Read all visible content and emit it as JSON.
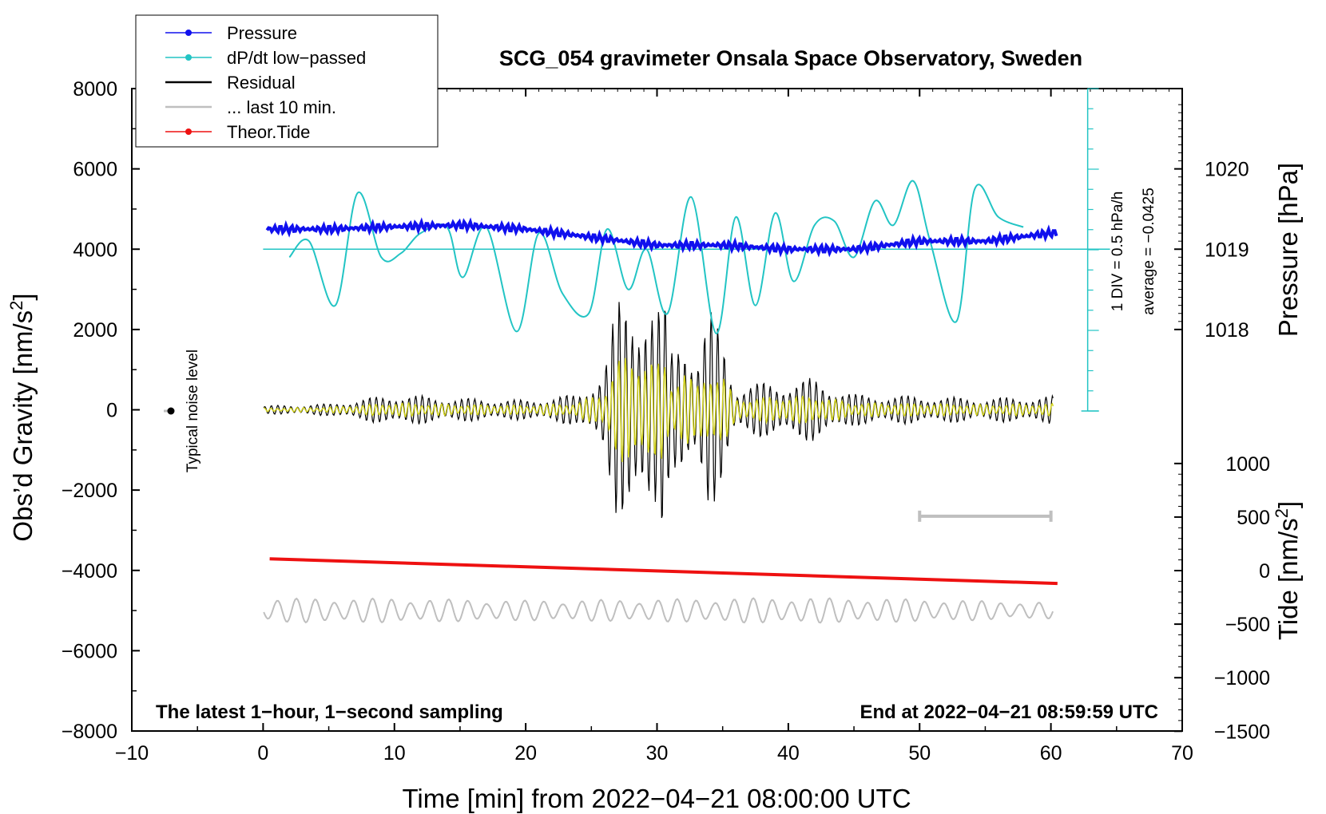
{
  "chart_data": {
    "type": "line",
    "title": "SCG_054 gravimeter Onsala Space Observatory, Sweden",
    "xlabel": "Time [min] from 2022−04−21 08:00:00 UTC",
    "ylabel_pre": "Obs’d Gravity [nm/s",
    "ylabel_sup": "2",
    "ylabel_post": "]",
    "right_pressure_label": "Pressure [hPa]",
    "right_tide_label_pre": "Tide [nm/s",
    "right_tide_label_sup": "2",
    "right_tide_label_post": "]",
    "xlim": [
      -10,
      70
    ],
    "ylim": [
      -8000,
      8000
    ],
    "xticks": [
      "−10",
      "0",
      "10",
      "20",
      "30",
      "40",
      "50",
      "60",
      "70"
    ],
    "yticks": [
      "−8000",
      "−6000",
      "−4000",
      "−2000",
      "0",
      "2000",
      "4000",
      "6000",
      "8000"
    ],
    "pressure_ticks": [
      "1018",
      "1019",
      "1020"
    ],
    "pressure_tick_values": [
      1018,
      1019,
      1020
    ],
    "tide_ticks": [
      "−1500",
      "−1000",
      "−500",
      "0",
      "500",
      "1000"
    ],
    "tide_tick_values": [
      -1500,
      -1000,
      -500,
      0,
      500,
      1000
    ],
    "legend": {
      "placement": "top-left",
      "entries": [
        {
          "label": "Pressure",
          "color": "#1010ee",
          "marker": true
        },
        {
          "label": "dP/dt low−passed",
          "color": "#22c4c4",
          "marker": true
        },
        {
          "label": "Residual",
          "color": "#000000",
          "marker": false
        },
        {
          "label": "... last 10 min.",
          "color": "#bfbfbf",
          "marker": false
        },
        {
          "label": "Theor.Tide",
          "color": "#ee1111",
          "marker": true
        }
      ]
    },
    "annotations": {
      "noise_level": "Typical noise level",
      "div_scale": "1 DIV = 0.5 hPa/h",
      "average": "average = −0.0425",
      "footer_left": "The latest 1−hour, 1−second sampling",
      "footer_right": "End at 2022−04−21 08:59:59 UTC"
    },
    "series": [
      {
        "name": "Pressure",
        "color": "#1010ee",
        "unit": "hPa",
        "x": [
          0,
          5,
          10,
          15,
          20,
          25,
          30,
          35,
          40,
          45,
          50,
          55,
          60
        ],
        "values": [
          1019.25,
          1019.25,
          1019.28,
          1019.3,
          1019.25,
          1019.15,
          1019.05,
          1019.05,
          1019.0,
          1019.0,
          1019.1,
          1019.1,
          1019.2
        ]
      },
      {
        "name": "dP/dt low-passed",
        "color": "#22c4c4",
        "unit": "nm/s2 (plotted on gravity axis)",
        "x": [
          2,
          3.5,
          5.5,
          7.2,
          9,
          10.5,
          12,
          14,
          15.2,
          17,
          19.3,
          21,
          22.8,
          24.8,
          26.2,
          27.8,
          29.2,
          30.8,
          32.6,
          34.5,
          36,
          37.5,
          39,
          40.4,
          42,
          43.5,
          45,
          46.6,
          48,
          49.5,
          50.8,
          52.8,
          54.2,
          56,
          57.9
        ],
        "values": [
          3800,
          4200,
          2600,
          5400,
          3800,
          3900,
          4400,
          4550,
          3300,
          4550,
          1950,
          4400,
          2900,
          2400,
          4500,
          3000,
          4000,
          2400,
          5300,
          1900,
          4800,
          2600,
          4900,
          3200,
          4600,
          4700,
          3800,
          5200,
          4600,
          5700,
          4200,
          2200,
          5500,
          4800,
          4550
        ]
      },
      {
        "name": "Residual",
        "color": "#000000",
        "unit": "nm/s2",
        "x": [
          0,
          5,
          10,
          15,
          20,
          24,
          26,
          27,
          28,
          29,
          29.5,
          30,
          30.5,
          31,
          32,
          33,
          34,
          35,
          36,
          38,
          42,
          45,
          50,
          55,
          60
        ],
        "amplitude": [
          100,
          150,
          400,
          300,
          250,
          400,
          1100,
          2800,
          3100,
          3200,
          3000,
          2500,
          3000,
          1500,
          2500,
          1300,
          2500,
          2000,
          600,
          700,
          800,
          400,
          350,
          300,
          350
        ]
      },
      {
        "name": "... last 10 min.",
        "color": "#bfbfbf",
        "unit": "nm/s2",
        "x": [
          0,
          10,
          20,
          30,
          40,
          50,
          60
        ],
        "center": -5000,
        "amplitude": [
          300,
          300,
          250,
          280,
          320,
          280,
          200
        ]
      },
      {
        "name": "Theor.Tide",
        "color": "#ee1111",
        "unit": "nm/s2 (tide axis)",
        "x": [
          0.5,
          60.5
        ],
        "values": [
          110,
          -120
        ]
      }
    ],
    "grey_bar": {
      "x_start": 50,
      "x_end": 60,
      "y": -2650
    }
  }
}
